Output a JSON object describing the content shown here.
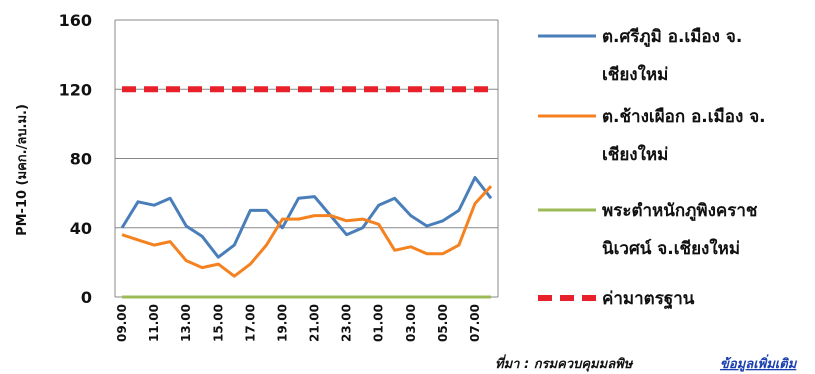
{
  "chart_data": {
    "type": "line",
    "ylabel": "PM-10 (มคก./ลบ.ม.)",
    "ylim": [
      0,
      160
    ],
    "yticks": [
      0,
      40,
      80,
      120,
      160
    ],
    "grid": true,
    "legend_position": "right",
    "x": [
      "09.00",
      "10.00",
      "11.00",
      "12.00",
      "13.00",
      "14.00",
      "15.00",
      "16.00",
      "17.00",
      "18.00",
      "19.00",
      "20.00",
      "21.00",
      "22.00",
      "23.00",
      "24.00",
      "01.00",
      "02.00",
      "03.00",
      "04.00",
      "05.00",
      "06.00",
      "07.00",
      "08.00"
    ],
    "x_tick_labels": [
      "09.00",
      "11.00",
      "13.00",
      "15.00",
      "17.00",
      "19.00",
      "21.00",
      "23.00",
      "01.00",
      "03.00",
      "05.00",
      "07.00"
    ],
    "series": [
      {
        "name": "ต.ศรีภูมิ อ.เมือง จ.เชียงใหม่",
        "name_lines": [
          "ต.ศรีภูมิ อ.เมือง จ.",
          "เชียงใหม่"
        ],
        "color": "#4a7ebb",
        "style": "solid",
        "values": [
          40,
          55,
          53,
          57,
          41,
          35,
          23,
          30,
          50,
          50,
          40,
          57,
          58,
          47,
          36,
          40,
          53,
          57,
          47,
          41,
          44,
          50,
          69,
          57
        ]
      },
      {
        "name": "ต.ช้างเผือก อ.เมือง จ.เชียงใหม่",
        "name_lines": [
          "ต.ช้างเผือก อ.เมือง จ.",
          "เชียงใหม่"
        ],
        "color": "#f58220",
        "style": "solid",
        "values": [
          36,
          33,
          30,
          32,
          21,
          17,
          19,
          12,
          19,
          30,
          45,
          45,
          47,
          47,
          44,
          45,
          42,
          27,
          29,
          25,
          25,
          30,
          54,
          64
        ]
      },
      {
        "name": "พระตำหนักภูพิงคราชนิเวศน์ จ.เชียงใหม่",
        "name_lines": [
          "พระตำหนักภูพิงคราช",
          "นิเวศน์ จ.เชียงใหม่"
        ],
        "color": "#9bbb59",
        "style": "solid",
        "values": [
          0,
          0,
          0,
          0,
          0,
          0,
          0,
          0,
          0,
          0,
          0,
          0,
          0,
          0,
          0,
          0,
          0,
          0,
          0,
          0,
          0,
          0,
          0,
          0
        ]
      },
      {
        "name": "ค่ามาตรฐาน",
        "name_lines": [
          "ค่ามาตรฐาน"
        ],
        "color": "#e8202a",
        "style": "dashed",
        "values": [
          120,
          120,
          120,
          120,
          120,
          120,
          120,
          120,
          120,
          120,
          120,
          120,
          120,
          120,
          120,
          120,
          120,
          120,
          120,
          120,
          120,
          120,
          120,
          120
        ]
      }
    ]
  },
  "footer": {
    "source": "ที่มา : กรมควบคุมมลพิษ",
    "link": "ข้อมูลเพิ่มเติม"
  }
}
